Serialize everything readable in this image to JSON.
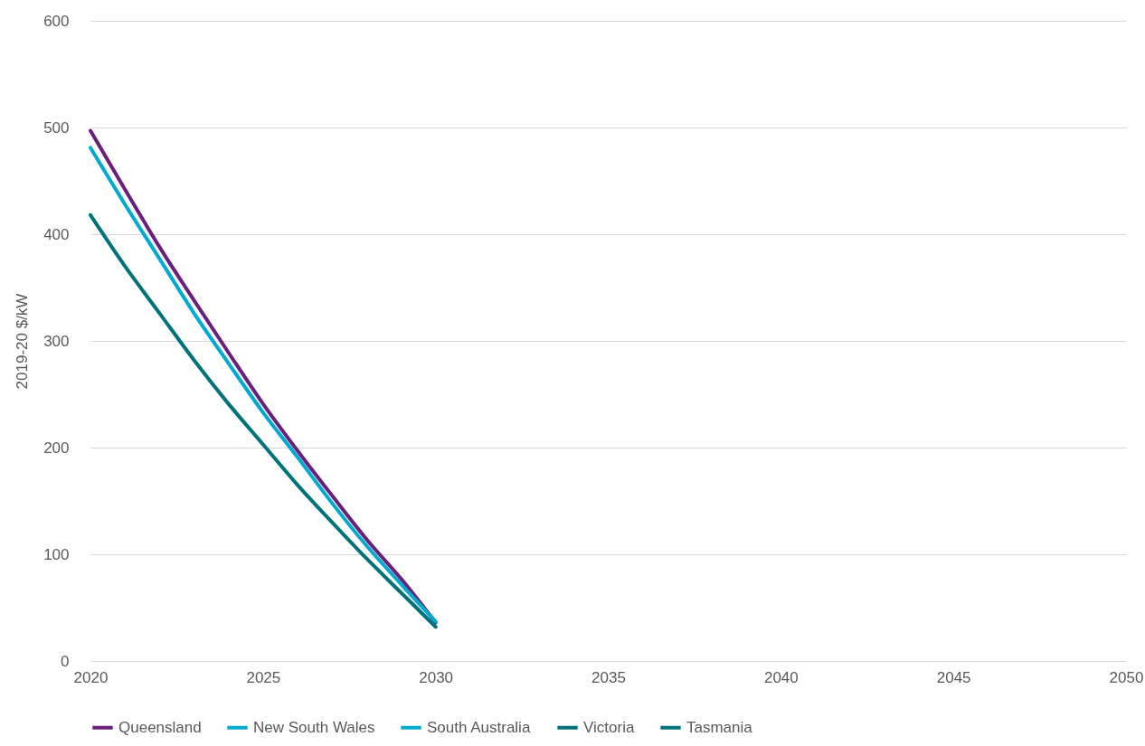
{
  "chart_data": {
    "type": "line",
    "ylabel": "2019-20 $/kW",
    "x": [
      2020,
      2021,
      2022,
      2023,
      2024,
      2025,
      2026,
      2027,
      2028,
      2029,
      2030
    ],
    "xlim": [
      2020,
      2050
    ],
    "xticks": [
      2020,
      2025,
      2030,
      2035,
      2040,
      2045,
      2050
    ],
    "ylim": [
      0,
      600
    ],
    "yticks": [
      0,
      100,
      200,
      300,
      400,
      500,
      600
    ],
    "grid": "y",
    "legend": "bottom",
    "line_style": "solid",
    "series": [
      {
        "name": "Queensland",
        "color": "#6b1f7c",
        "values": [
          497,
          442,
          388,
          338,
          289,
          241,
          197,
          155,
          114,
          77,
          36
        ]
      },
      {
        "name": "New South Wales",
        "color": "#00a9ce",
        "values": [
          481,
          428,
          377,
          326,
          279,
          233,
          191,
          148,
          108,
          72,
          37
        ]
      },
      {
        "name": "South Australia",
        "color": "#00a9ce",
        "values": [
          null,
          null,
          null,
          null,
          null,
          null,
          null,
          null,
          null,
          null,
          null
        ]
      },
      {
        "name": "Victoria",
        "color": "#00727a",
        "values": [
          418,
          370,
          326,
          282,
          241,
          203,
          165,
          130,
          96,
          64,
          32
        ]
      },
      {
        "name": "Tasmania",
        "color": "#00727a",
        "values": [
          null,
          null,
          null,
          null,
          null,
          null,
          null,
          null,
          null,
          null,
          null
        ]
      }
    ]
  }
}
